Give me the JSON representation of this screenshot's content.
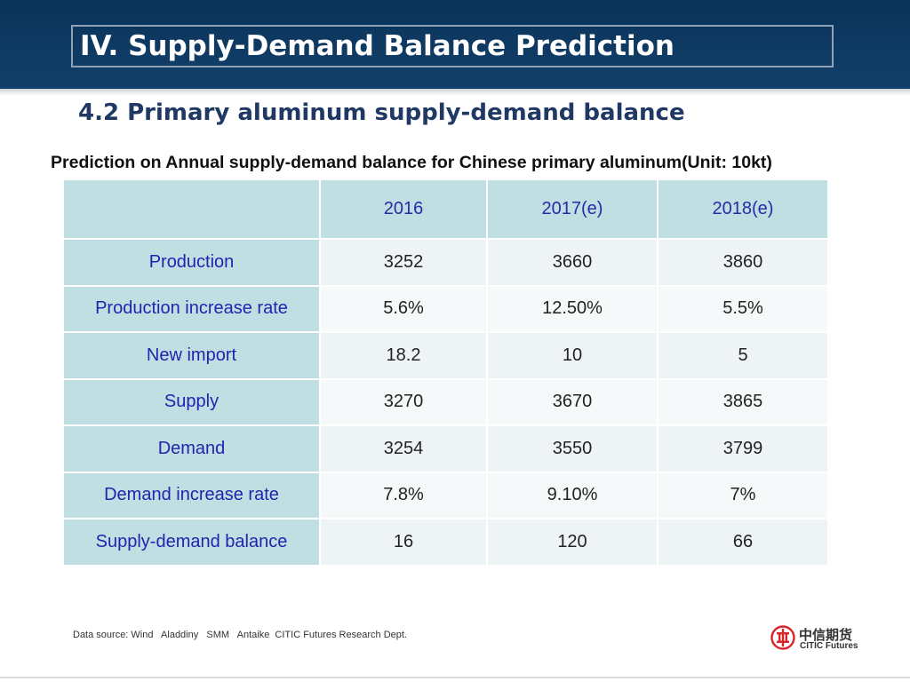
{
  "header": {
    "title": "IV. Supply-Demand Balance Prediction"
  },
  "section": {
    "subtitle": "4.2 Primary aluminum supply-demand balance",
    "caption": "Prediction on Annual supply-demand balance for Chinese primary aluminum(Unit: 10kt)"
  },
  "table": {
    "columns": [
      "",
      "2016",
      "2017(e)",
      "2018(e)"
    ],
    "rows": [
      {
        "label": "Production",
        "values": [
          "3252",
          "3660",
          "3860"
        ]
      },
      {
        "label": "Production increase rate",
        "values": [
          "5.6%",
          "12.50%",
          "5.5%"
        ]
      },
      {
        "label": "New import",
        "values": [
          "18.2",
          "10",
          "5"
        ]
      },
      {
        "label": "Supply",
        "values": [
          "3270",
          "3670",
          "3865"
        ]
      },
      {
        "label": "Demand",
        "values": [
          "3254",
          "3550",
          "3799"
        ]
      },
      {
        "label": "Demand increase rate",
        "values": [
          "7.8%",
          "9.10%",
          "7%"
        ]
      },
      {
        "label": "Supply-demand balance",
        "values": [
          "16",
          "120",
          "66"
        ]
      }
    ]
  },
  "footer": {
    "source": "Data source: Wind   Aladdiny   SMM   Antaike  CITIC Futures Research Dept."
  },
  "logo": {
    "chinese": "中信期货",
    "english": "CITIC Futures",
    "icon": "citic-logo-icon",
    "color": "#d7262b"
  },
  "colors": {
    "header_bg": "#0e3a63",
    "table_label_bg": "#bfdfe2",
    "label_text": "#2323b0",
    "subtitle_text": "#1f3864"
  }
}
